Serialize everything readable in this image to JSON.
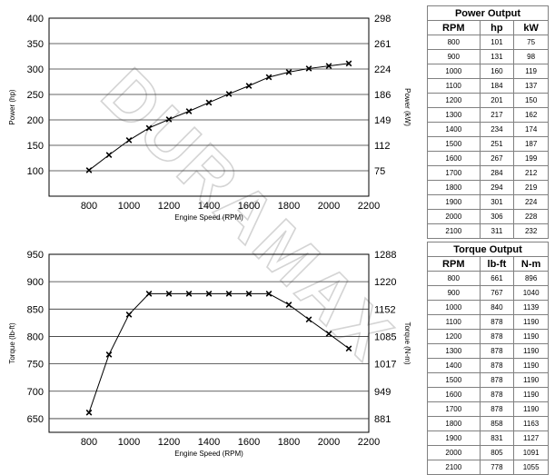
{
  "watermark": "DURAMAX",
  "chart_data": [
    {
      "type": "line",
      "title": "",
      "xlabel": "Engine Speed (RPM)",
      "ylabel": "Power (hp)",
      "y2label": "Power (kW)",
      "xlim": [
        600,
        2200
      ],
      "ylim": [
        50,
        400
      ],
      "xticks": [
        "800",
        "1000",
        "1200",
        "1400",
        "1600",
        "1800",
        "2000",
        "2200"
      ],
      "yticks": [
        "100",
        "150",
        "200",
        "250",
        "300",
        "350",
        "400"
      ],
      "y2ticks": [
        "75",
        "112",
        "149",
        "186",
        "224",
        "261",
        "298"
      ],
      "grid": "horizontal",
      "marker": "x",
      "x": [
        800,
        900,
        1000,
        1100,
        1200,
        1300,
        1400,
        1500,
        1600,
        1700,
        1800,
        1900,
        2000,
        2100
      ],
      "series": [
        {
          "values": [
            101,
            131,
            160,
            184,
            201,
            217,
            234,
            251,
            267,
            284,
            294,
            301,
            306,
            311
          ]
        }
      ]
    },
    {
      "type": "line",
      "title": "",
      "xlabel": "Engine Speed (RPM)",
      "ylabel": "Torque (lb-ft)",
      "y2label": "Torque (N-m)",
      "xlim": [
        600,
        2200
      ],
      "ylim": [
        625,
        950
      ],
      "xticks": [
        "800",
        "1000",
        "1200",
        "1400",
        "1600",
        "1800",
        "2000",
        "2200"
      ],
      "yticks": [
        "650",
        "700",
        "750",
        "800",
        "850",
        "900",
        "950"
      ],
      "y2ticks": [
        "881",
        "949",
        "1017",
        "1085",
        "1152",
        "1220",
        "1288"
      ],
      "grid": "horizontal",
      "marker": "x",
      "x": [
        800,
        900,
        1000,
        1100,
        1200,
        1300,
        1400,
        1500,
        1600,
        1700,
        1800,
        1900,
        2000,
        2100
      ],
      "series": [
        {
          "values": [
            661,
            767,
            840,
            878,
            878,
            878,
            878,
            878,
            878,
            878,
            858,
            831,
            805,
            778
          ]
        }
      ]
    }
  ],
  "power_table": {
    "title": "Power Output",
    "headers": [
      "RPM",
      "hp",
      "kW"
    ],
    "rows": [
      [
        "800",
        "101",
        "75"
      ],
      [
        "900",
        "131",
        "98"
      ],
      [
        "1000",
        "160",
        "119"
      ],
      [
        "1100",
        "184",
        "137"
      ],
      [
        "1200",
        "201",
        "150"
      ],
      [
        "1300",
        "217",
        "162"
      ],
      [
        "1400",
        "234",
        "174"
      ],
      [
        "1500",
        "251",
        "187"
      ],
      [
        "1600",
        "267",
        "199"
      ],
      [
        "1700",
        "284",
        "212"
      ],
      [
        "1800",
        "294",
        "219"
      ],
      [
        "1900",
        "301",
        "224"
      ],
      [
        "2000",
        "306",
        "228"
      ],
      [
        "2100",
        "311",
        "232"
      ]
    ]
  },
  "torque_table": {
    "title": "Torque Output",
    "headers": [
      "RPM",
      "lb-ft",
      "N-m"
    ],
    "rows": [
      [
        "800",
        "661",
        "896"
      ],
      [
        "900",
        "767",
        "1040"
      ],
      [
        "1000",
        "840",
        "1139"
      ],
      [
        "1100",
        "878",
        "1190"
      ],
      [
        "1200",
        "878",
        "1190"
      ],
      [
        "1300",
        "878",
        "1190"
      ],
      [
        "1400",
        "878",
        "1190"
      ],
      [
        "1500",
        "878",
        "1190"
      ],
      [
        "1600",
        "878",
        "1190"
      ],
      [
        "1700",
        "878",
        "1190"
      ],
      [
        "1800",
        "858",
        "1163"
      ],
      [
        "1900",
        "831",
        "1127"
      ],
      [
        "2000",
        "805",
        "1091"
      ],
      [
        "2100",
        "778",
        "1055"
      ]
    ]
  }
}
